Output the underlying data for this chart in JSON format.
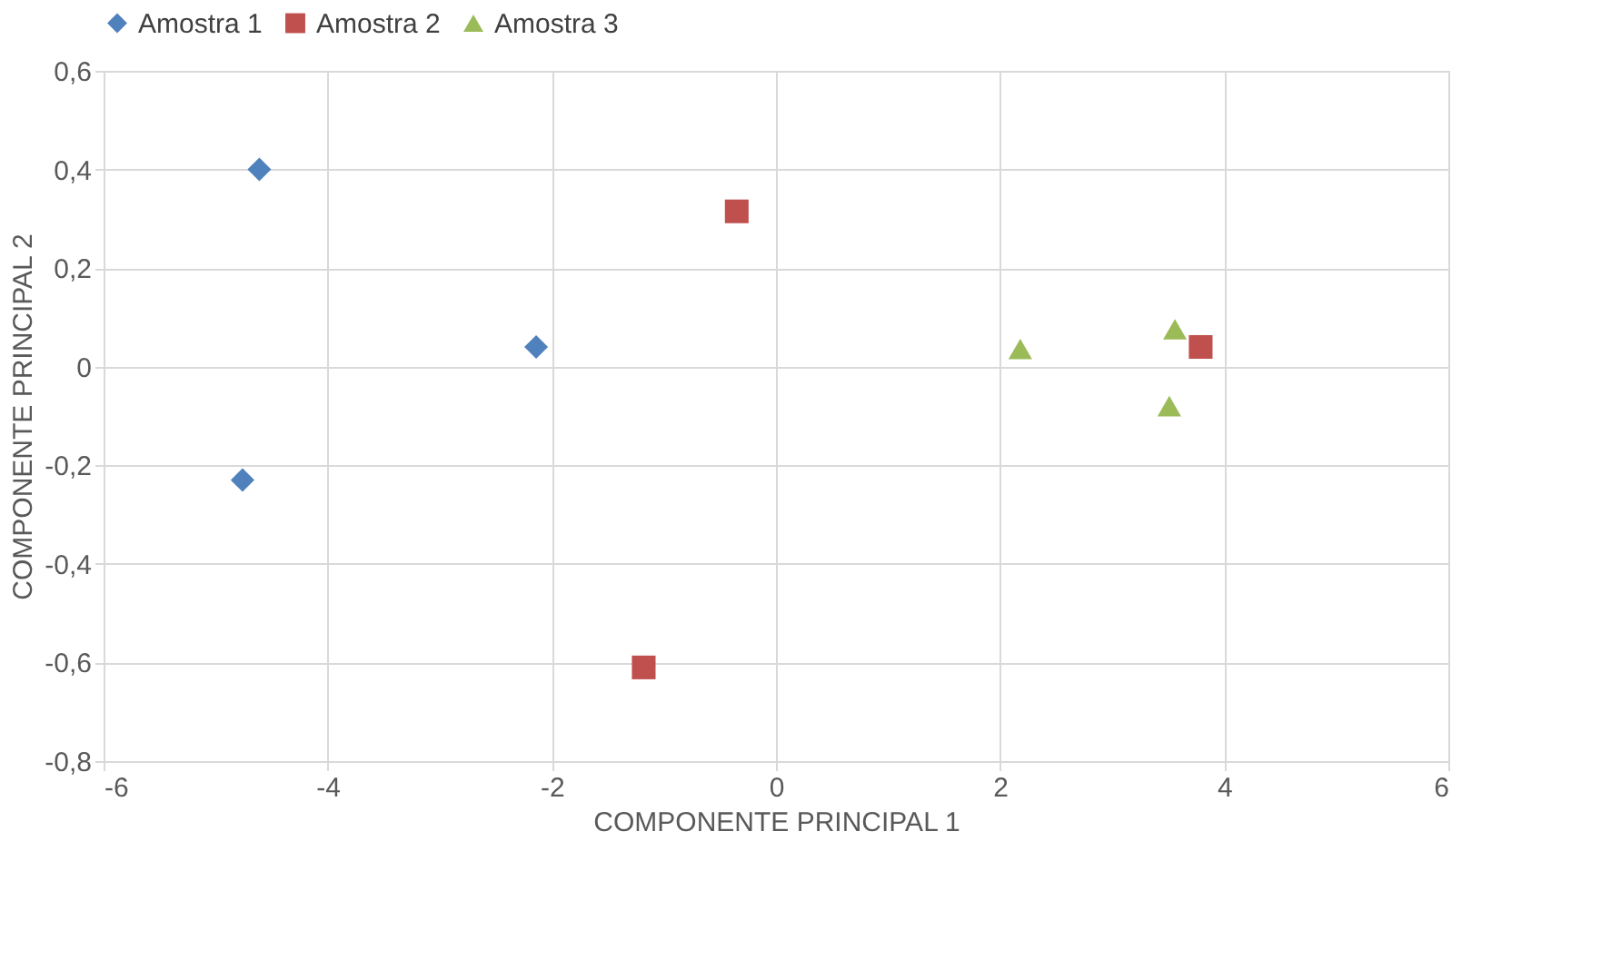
{
  "chart_data": {
    "type": "scatter",
    "xlabel": "COMPONENTE PRINCIPAL 1",
    "ylabel": "COMPONENTE PRINCIPAL 2",
    "xlim": [
      -6,
      6
    ],
    "xticks": [
      -6,
      -4,
      -2,
      0,
      2,
      4,
      6
    ],
    "ylim": [
      -0.8,
      0.6
    ],
    "yticks": [
      {
        "value": -0.8,
        "label": "-0,8"
      },
      {
        "value": -0.6,
        "label": "-0,6"
      },
      {
        "value": -0.4,
        "label": "-0,4"
      },
      {
        "value": -0.2,
        "label": "-0,2"
      },
      0,
      {
        "value": 0.2,
        "label": "0,2"
      },
      {
        "value": 0.4,
        "label": "0,4"
      },
      {
        "value": 0.6,
        "label": "0,6"
      }
    ],
    "grid": true,
    "legend": "top",
    "series": [
      {
        "name": "Amostra 1",
        "color": "#4f81bd",
        "marker": "diamond",
        "x": [
          -4.61,
          -2.14,
          -4.76
        ],
        "values": [
          0.4,
          0.04,
          -0.23
        ]
      },
      {
        "name": "Amostra 2",
        "color": "#c0504d",
        "marker": "square",
        "x": [
          -0.35,
          3.79,
          -1.18
        ],
        "values": [
          0.315,
          0.04,
          -0.61
        ]
      },
      {
        "name": "Amostra 3",
        "color": "#9bbb59",
        "marker": "triangle",
        "x": [
          2.18,
          3.56,
          3.51
        ],
        "values": [
          0.036,
          0.076,
          -0.08
        ]
      }
    ]
  }
}
